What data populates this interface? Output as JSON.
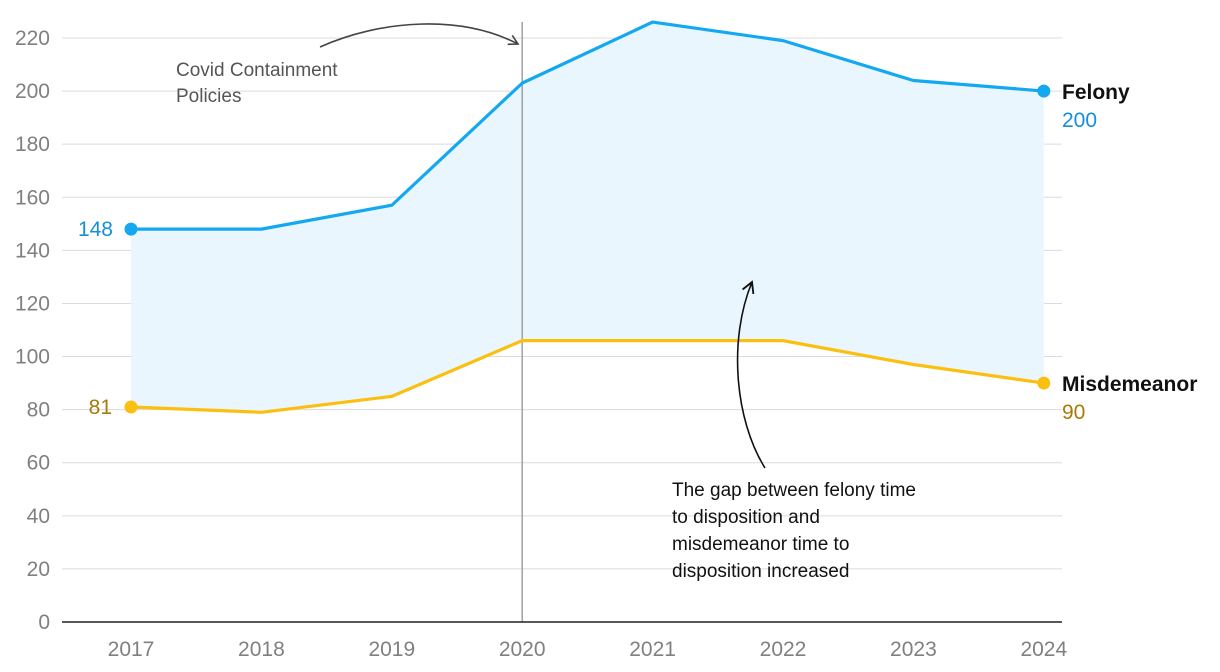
{
  "chart_data": {
    "type": "line",
    "x": [
      2017,
      2018,
      2019,
      2020,
      2021,
      2022,
      2023,
      2024
    ],
    "categories": [
      "2017",
      "2018",
      "2019",
      "2020",
      "2021",
      "2022",
      "2023",
      "2024"
    ],
    "ylim": [
      0,
      220
    ],
    "yticks": [
      "0",
      "20",
      "40",
      "60",
      "80",
      "100",
      "120",
      "140",
      "160",
      "180",
      "200",
      "220"
    ],
    "grid": true,
    "series": [
      {
        "name": "Felony",
        "values": [
          148,
          148,
          157,
          203,
          226,
          219,
          204,
          200
        ],
        "color": "#14a8f0",
        "start_label": "148",
        "end_label": "200"
      },
      {
        "name": "Misdemeanor",
        "values": [
          81,
          79,
          85,
          106,
          106,
          106,
          97,
          90
        ],
        "color": "#fbbf0f",
        "start_label": "81",
        "end_label": "90"
      }
    ],
    "fill_between_color": "#eaf6fd",
    "label_colors": {
      "felony": "#1590d6",
      "misdemeanor": "#a87a08"
    },
    "vertical_marker_x": 2020,
    "annotations": {
      "covid": [
        "Covid Containment",
        "Policies"
      ],
      "gap": [
        "The gap between felony time",
        "to disposition and",
        "misdemeanor time to",
        "disposition increased"
      ]
    }
  }
}
